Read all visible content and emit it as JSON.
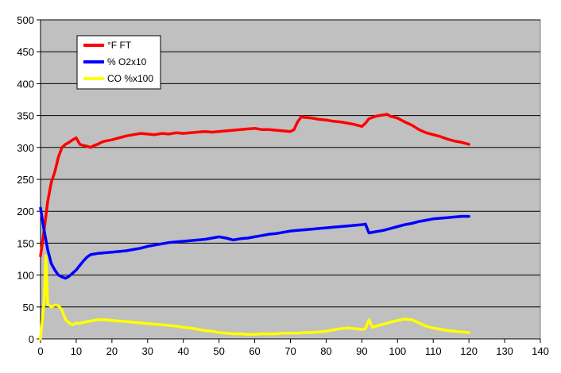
{
  "chart_data": {
    "type": "line",
    "title": "",
    "xlabel": "",
    "ylabel": "",
    "xlim": [
      0,
      140
    ],
    "ylim": [
      0,
      500
    ],
    "x_ticks": [
      0,
      10,
      20,
      30,
      40,
      50,
      60,
      70,
      80,
      90,
      100,
      110,
      120,
      130,
      140
    ],
    "y_ticks": [
      0,
      50,
      100,
      150,
      200,
      250,
      300,
      350,
      400,
      450,
      500
    ],
    "grid": "horizontal",
    "plot_background": "#c0c0c0",
    "legend_position": "top-left",
    "series": [
      {
        "name": "°F FT",
        "color": "#ff0000",
        "points": [
          [
            0,
            130
          ],
          [
            1,
            170
          ],
          [
            2,
            215
          ],
          [
            3,
            245
          ],
          [
            4,
            262
          ],
          [
            5,
            285
          ],
          [
            6,
            300
          ],
          [
            7,
            305
          ],
          [
            8,
            308
          ],
          [
            9,
            312
          ],
          [
            10,
            315
          ],
          [
            11,
            305
          ],
          [
            12,
            303
          ],
          [
            13,
            302
          ],
          [
            14,
            300
          ],
          [
            15,
            303
          ],
          [
            16,
            305
          ],
          [
            17,
            308
          ],
          [
            18,
            310
          ],
          [
            20,
            312
          ],
          [
            22,
            315
          ],
          [
            24,
            318
          ],
          [
            26,
            320
          ],
          [
            28,
            322
          ],
          [
            30,
            321
          ],
          [
            32,
            320
          ],
          [
            34,
            322
          ],
          [
            36,
            321
          ],
          [
            38,
            323
          ],
          [
            40,
            322
          ],
          [
            42,
            323
          ],
          [
            44,
            324
          ],
          [
            46,
            325
          ],
          [
            48,
            324
          ],
          [
            50,
            325
          ],
          [
            52,
            326
          ],
          [
            54,
            327
          ],
          [
            56,
            328
          ],
          [
            58,
            329
          ],
          [
            60,
            330
          ],
          [
            62,
            328
          ],
          [
            64,
            328
          ],
          [
            66,
            327
          ],
          [
            68,
            326
          ],
          [
            70,
            325
          ],
          [
            71,
            328
          ],
          [
            72,
            340
          ],
          [
            73,
            348
          ],
          [
            74,
            347
          ],
          [
            76,
            346
          ],
          [
            78,
            344
          ],
          [
            80,
            343
          ],
          [
            82,
            341
          ],
          [
            84,
            340
          ],
          [
            86,
            338
          ],
          [
            88,
            336
          ],
          [
            90,
            333
          ],
          [
            91,
            338
          ],
          [
            92,
            345
          ],
          [
            94,
            349
          ],
          [
            96,
            351
          ],
          [
            97,
            352
          ],
          [
            98,
            349
          ],
          [
            100,
            346
          ],
          [
            102,
            340
          ],
          [
            104,
            335
          ],
          [
            106,
            328
          ],
          [
            108,
            323
          ],
          [
            110,
            320
          ],
          [
            112,
            317
          ],
          [
            114,
            313
          ],
          [
            116,
            310
          ],
          [
            118,
            308
          ],
          [
            120,
            305
          ]
        ]
      },
      {
        "name": "% O2x10",
        "color": "#0000ff",
        "points": [
          [
            0,
            205
          ],
          [
            1,
            170
          ],
          [
            2,
            140
          ],
          [
            3,
            118
          ],
          [
            4,
            108
          ],
          [
            5,
            100
          ],
          [
            6,
            97
          ],
          [
            7,
            95
          ],
          [
            8,
            98
          ],
          [
            9,
            103
          ],
          [
            10,
            108
          ],
          [
            11,
            115
          ],
          [
            12,
            122
          ],
          [
            13,
            128
          ],
          [
            14,
            132
          ],
          [
            16,
            134
          ],
          [
            18,
            135
          ],
          [
            20,
            136
          ],
          [
            22,
            137
          ],
          [
            24,
            138
          ],
          [
            26,
            140
          ],
          [
            28,
            142
          ],
          [
            30,
            145
          ],
          [
            32,
            147
          ],
          [
            34,
            149
          ],
          [
            36,
            151
          ],
          [
            38,
            152
          ],
          [
            40,
            153
          ],
          [
            42,
            154
          ],
          [
            44,
            155
          ],
          [
            46,
            156
          ],
          [
            48,
            158
          ],
          [
            50,
            160
          ],
          [
            52,
            158
          ],
          [
            54,
            155
          ],
          [
            56,
            157
          ],
          [
            58,
            158
          ],
          [
            60,
            160
          ],
          [
            62,
            162
          ],
          [
            64,
            164
          ],
          [
            66,
            165
          ],
          [
            68,
            167
          ],
          [
            70,
            169
          ],
          [
            72,
            170
          ],
          [
            74,
            171
          ],
          [
            76,
            172
          ],
          [
            78,
            173
          ],
          [
            80,
            174
          ],
          [
            82,
            175
          ],
          [
            84,
            176
          ],
          [
            86,
            177
          ],
          [
            88,
            178
          ],
          [
            90,
            179
          ],
          [
            91,
            180
          ],
          [
            92,
            166
          ],
          [
            94,
            168
          ],
          [
            96,
            170
          ],
          [
            98,
            173
          ],
          [
            100,
            176
          ],
          [
            102,
            179
          ],
          [
            104,
            181
          ],
          [
            106,
            184
          ],
          [
            108,
            186
          ],
          [
            110,
            188
          ],
          [
            112,
            189
          ],
          [
            114,
            190
          ],
          [
            116,
            191
          ],
          [
            118,
            192
          ],
          [
            120,
            192
          ]
        ]
      },
      {
        "name": "CO %x100",
        "color": "#ffff00",
        "points": [
          [
            0,
            0
          ],
          [
            1,
            60
          ],
          [
            1.5,
            130
          ],
          [
            2,
            55
          ],
          [
            3,
            50
          ],
          [
            4,
            53
          ],
          [
            5,
            52
          ],
          [
            6,
            45
          ],
          [
            7,
            30
          ],
          [
            8,
            25
          ],
          [
            9,
            22
          ],
          [
            10,
            25
          ],
          [
            11,
            24
          ],
          [
            12,
            26
          ],
          [
            14,
            28
          ],
          [
            16,
            30
          ],
          [
            18,
            30
          ],
          [
            20,
            29
          ],
          [
            22,
            28
          ],
          [
            24,
            27
          ],
          [
            26,
            26
          ],
          [
            28,
            25
          ],
          [
            30,
            24
          ],
          [
            32,
            23
          ],
          [
            34,
            22
          ],
          [
            36,
            21
          ],
          [
            38,
            20
          ],
          [
            40,
            18
          ],
          [
            42,
            17
          ],
          [
            44,
            15
          ],
          [
            46,
            13
          ],
          [
            48,
            12
          ],
          [
            50,
            10
          ],
          [
            52,
            9
          ],
          [
            54,
            8
          ],
          [
            56,
            8
          ],
          [
            58,
            7
          ],
          [
            60,
            7
          ],
          [
            62,
            8
          ],
          [
            64,
            8
          ],
          [
            66,
            8
          ],
          [
            68,
            9
          ],
          [
            70,
            9
          ],
          [
            72,
            9
          ],
          [
            74,
            10
          ],
          [
            76,
            10
          ],
          [
            78,
            11
          ],
          [
            80,
            12
          ],
          [
            82,
            14
          ],
          [
            84,
            16
          ],
          [
            86,
            17
          ],
          [
            88,
            16
          ],
          [
            90,
            15
          ],
          [
            91,
            16
          ],
          [
            92,
            30
          ],
          [
            93,
            18
          ],
          [
            94,
            20
          ],
          [
            96,
            23
          ],
          [
            98,
            26
          ],
          [
            100,
            29
          ],
          [
            102,
            31
          ],
          [
            104,
            30
          ],
          [
            106,
            25
          ],
          [
            108,
            20
          ],
          [
            110,
            17
          ],
          [
            112,
            15
          ],
          [
            114,
            13
          ],
          [
            116,
            12
          ],
          [
            118,
            11
          ],
          [
            120,
            10
          ]
        ]
      }
    ]
  }
}
